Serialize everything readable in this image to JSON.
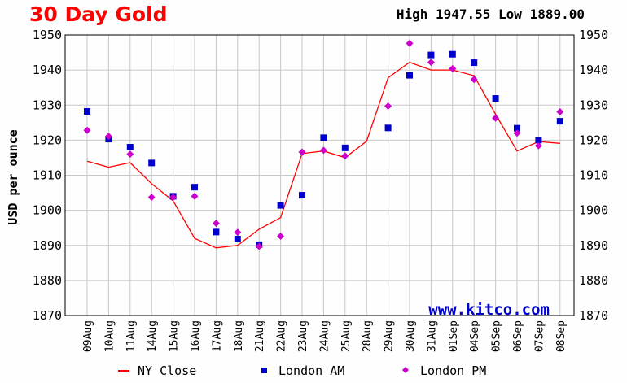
{
  "header": {
    "title": "30 Day Gold",
    "high_low": "High 1947.55 Low 1889.00"
  },
  "watermark": "www.kitco.com",
  "colors": {
    "ny_close": "#ff0000",
    "london_am": "#0000cc",
    "london_pm": "#cc00cc",
    "watermark": "#0000cc",
    "title": "#ff0000"
  },
  "chart_data": {
    "type": "line",
    "ylabel": "USD per ounce",
    "ylim": [
      1870,
      1950
    ],
    "yticks": [
      1870,
      1880,
      1890,
      1900,
      1910,
      1920,
      1930,
      1940,
      1950
    ],
    "grid": true,
    "legend_position": "bottom",
    "categories": [
      "09Aug",
      "10Aug",
      "11Aug",
      "14Aug",
      "15Aug",
      "16Aug",
      "17Aug",
      "18Aug",
      "21Aug",
      "22Aug",
      "23Aug",
      "24Aug",
      "25Aug",
      "28Aug",
      "29Aug",
      "30Aug",
      "31Aug",
      "01Sep",
      "04Sep",
      "05Sep",
      "06Sep",
      "07Sep",
      "08Sep"
    ],
    "series": [
      {
        "name": "NY Close",
        "kind": "line",
        "values": [
          1914.0,
          1912.3,
          1913.6,
          1907.6,
          1902.7,
          1892.0,
          1889.3,
          1890.0,
          1894.6,
          1897.9,
          1916.2,
          1916.9,
          1915.0,
          1919.7,
          1937.8,
          1942.2,
          1940.0,
          1940.0,
          1938.4,
          1927.4,
          1916.9,
          1919.6,
          1919.1
        ]
      },
      {
        "name": "London AM",
        "kind": "square",
        "values": [
          1928.2,
          1920.3,
          1918.0,
          1913.5,
          1904.0,
          1906.6,
          1893.8,
          1891.8,
          1890.2,
          1901.4,
          1904.3,
          1920.7,
          1917.8,
          null,
          1923.5,
          1938.5,
          1944.3,
          1944.5,
          1942.1,
          1931.9,
          1923.4,
          1920.0,
          1925.4
        ]
      },
      {
        "name": "London PM",
        "kind": "diamond",
        "values": [
          1922.8,
          1921.1,
          1916.0,
          1903.7,
          1903.7,
          1904.0,
          1896.3,
          1893.7,
          1889.7,
          1892.6,
          1916.6,
          1917.1,
          1915.5,
          null,
          1929.7,
          1947.6,
          1942.2,
          1940.4,
          1937.3,
          1926.3,
          1922.0,
          1918.4,
          1928.1
        ]
      }
    ]
  }
}
